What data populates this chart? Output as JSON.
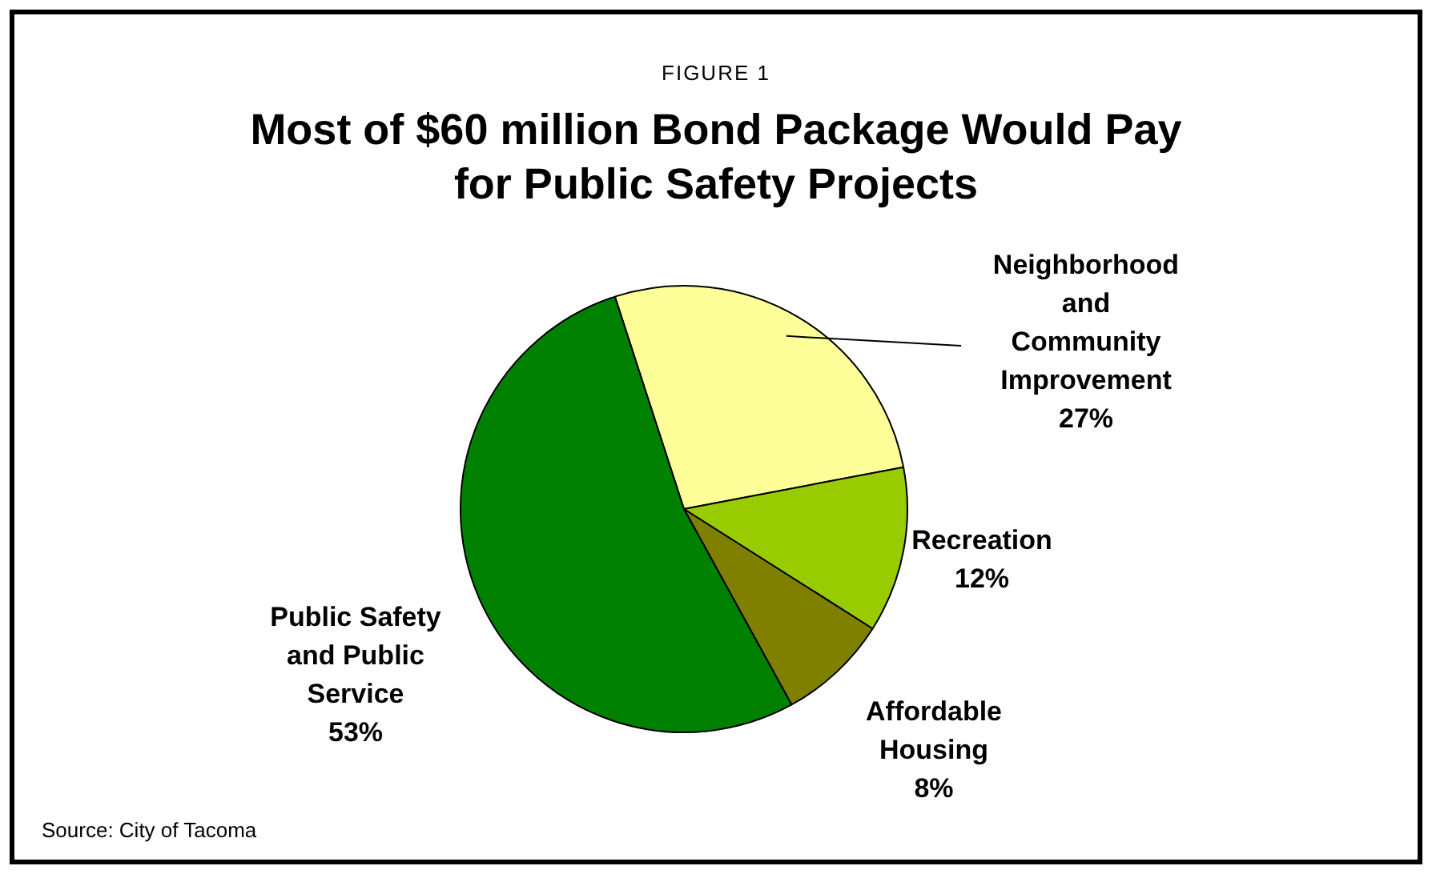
{
  "chart_data": {
    "type": "pie",
    "subtitle": "FIGURE 1",
    "title": "Most of $60 million Bond Package Would Pay for Public Safety Projects",
    "categories": [
      "Neighborhood and Community Improvement",
      "Recreation",
      "Affordable Housing",
      "Public Safety and Public Service"
    ],
    "values": [
      27,
      12,
      8,
      53
    ],
    "value_labels": [
      "27%",
      "12%",
      "8%",
      "53%"
    ],
    "colors": [
      "#ffff99",
      "#99cc00",
      "#808000",
      "#008000"
    ],
    "legend": false,
    "annotations": [
      "Source: City of Tacoma"
    ]
  }
}
